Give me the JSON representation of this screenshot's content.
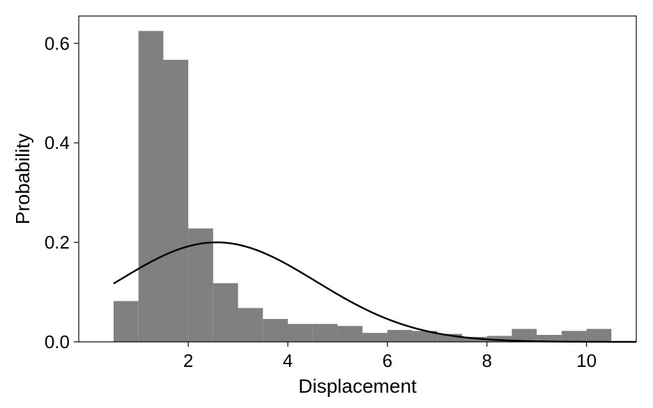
{
  "chart_data": {
    "type": "bar",
    "title": "",
    "xlabel": "Displacement",
    "ylabel": "Probability",
    "xlim": [
      -0.2,
      11.0
    ],
    "ylim": [
      0,
      0.655
    ],
    "xticks": [
      2,
      4,
      6,
      8,
      10
    ],
    "yticks": [
      0.0,
      0.2,
      0.4,
      0.6
    ],
    "ytick_labels": [
      "0.0",
      "0.2",
      "0.4",
      "0.6"
    ],
    "grid": false,
    "bar_color": "#808080",
    "curve_color": "#000000",
    "histogram": {
      "bin_edges": [
        0.5,
        1.0,
        1.5,
        2.0,
        2.5,
        3.0,
        3.5,
        4.0,
        4.5,
        5.0,
        5.5,
        6.0,
        6.5,
        7.0,
        7.5,
        8.0,
        8.5,
        9.0,
        9.5,
        10.0,
        10.5
      ],
      "values": [
        0.082,
        0.625,
        0.567,
        0.228,
        0.118,
        0.068,
        0.046,
        0.036,
        0.036,
        0.032,
        0.018,
        0.024,
        0.022,
        0.016,
        0.01,
        0.012,
        0.026,
        0.014,
        0.022,
        0.026
      ]
    },
    "fit_curve": {
      "type": "normal",
      "mean": 2.57,
      "std": 2.0,
      "peak": 0.2,
      "x_range": [
        0.5,
        11.0
      ]
    }
  }
}
